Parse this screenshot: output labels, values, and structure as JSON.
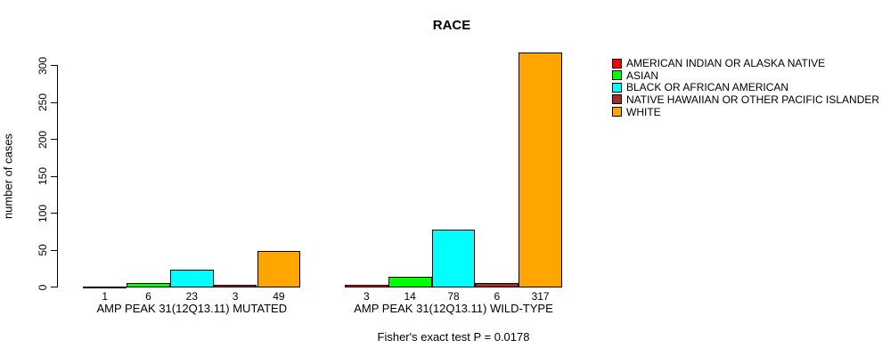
{
  "chart_data": {
    "type": "bar",
    "title": "RACE",
    "ylabel": "number of cases",
    "footnote": "Fisher's exact test P = 0.0178",
    "ylim": [
      0,
      300
    ],
    "yticks": [
      0,
      50,
      100,
      150,
      200,
      250,
      300
    ],
    "grid": false,
    "legend_position": "top-right",
    "categories": [
      "AMERICAN INDIAN OR ALASKA NATIVE",
      "ASIAN",
      "BLACK OR AFRICAN AMERICAN",
      "NATIVE HAWAIIAN OR OTHER PACIFIC ISLANDER",
      "WHITE"
    ],
    "series_colors": [
      "#FF0000",
      "#00FF00",
      "#00FFFF",
      "#A52A2A",
      "#FFA500"
    ],
    "groups": [
      {
        "label": "AMP PEAK 31(12Q13.11) MUTATED",
        "values": [
          1,
          6,
          23,
          3,
          49
        ]
      },
      {
        "label": "AMP PEAK 31(12Q13.11) WILD-TYPE",
        "values": [
          3,
          14,
          78,
          6,
          317
        ]
      }
    ]
  }
}
